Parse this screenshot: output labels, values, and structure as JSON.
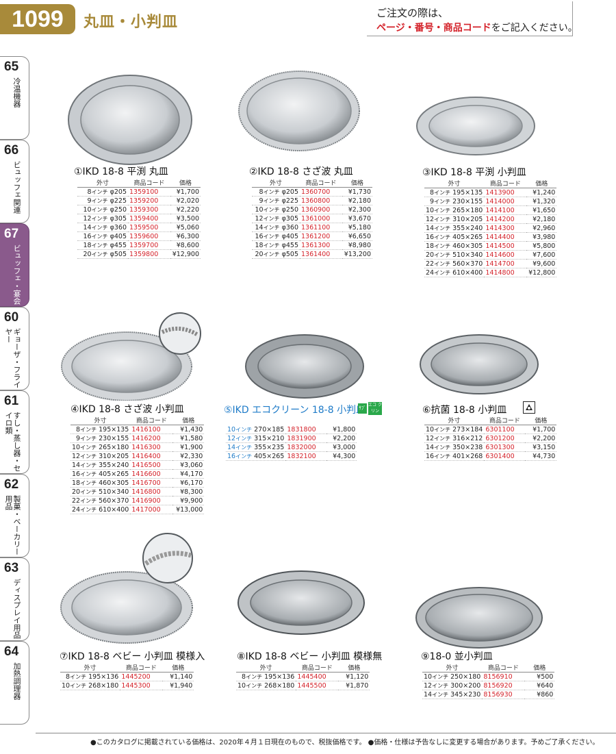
{
  "header": {
    "page_number": "1099",
    "title": "丸皿・小判皿",
    "notice_line1": "ご注文の際は、",
    "notice_line2_red": "ページ・番号・商品コード",
    "notice_line2_rest": "をご記入ください。"
  },
  "tabs": [
    {
      "num": "65",
      "label": "冷温機器"
    },
    {
      "num": "66",
      "label": "ビュッフェ関連"
    },
    {
      "num": "67",
      "label": "ビュッフェ・宴会"
    },
    {
      "num": "60",
      "label": "ギョーザ・フライヤー"
    },
    {
      "num": "61",
      "label": "すし・蒸し器・セイロ類"
    },
    {
      "num": "62",
      "label": "製菓・ベーカリー用品"
    },
    {
      "num": "63",
      "label": "ディスプレイ用品"
    },
    {
      "num": "64",
      "label": "加熱調理器"
    }
  ],
  "columns": {
    "size": "外寸",
    "code": "商品コード",
    "price": "価格"
  },
  "unit": "インチ",
  "colors": {
    "gold": "#a88a3a",
    "red": "#d4222a",
    "purple": "#8a5a8c",
    "blue": "#1e7bc8",
    "green": "#2aa84a"
  },
  "products": [
    {
      "title": "①IKD 18-8 平渕 丸皿",
      "rows": [
        {
          "inch": "8",
          "size": "φ205",
          "code": "1359100",
          "price": "¥1,700"
        },
        {
          "inch": "9",
          "size": "φ225",
          "code": "1359200",
          "price": "¥2,020"
        },
        {
          "inch": "10",
          "size": "φ250",
          "code": "1359300",
          "price": "¥2,220"
        },
        {
          "inch": "12",
          "size": "φ305",
          "code": "1359400",
          "price": "¥3,500"
        },
        {
          "inch": "14",
          "size": "φ360",
          "code": "1359500",
          "price": "¥5,060"
        },
        {
          "inch": "16",
          "size": "φ405",
          "code": "1359600",
          "price": "¥6,300"
        },
        {
          "inch": "18",
          "size": "φ455",
          "code": "1359700",
          "price": "¥8,600"
        },
        {
          "inch": "20",
          "size": "φ505",
          "code": "1359800",
          "price": "¥12,900"
        }
      ]
    },
    {
      "title": "②IKD 18-8 さざ波 丸皿",
      "rows": [
        {
          "inch": "8",
          "size": "φ205",
          "code": "1360700",
          "price": "¥1,730"
        },
        {
          "inch": "9",
          "size": "φ225",
          "code": "1360800",
          "price": "¥2,180"
        },
        {
          "inch": "10",
          "size": "φ250",
          "code": "1360900",
          "price": "¥2,300"
        },
        {
          "inch": "12",
          "size": "φ305",
          "code": "1361000",
          "price": "¥3,670"
        },
        {
          "inch": "14",
          "size": "φ360",
          "code": "1361100",
          "price": "¥5,180"
        },
        {
          "inch": "16",
          "size": "φ405",
          "code": "1361200",
          "price": "¥6,650"
        },
        {
          "inch": "18",
          "size": "φ455",
          "code": "1361300",
          "price": "¥8,980"
        },
        {
          "inch": "20",
          "size": "φ505",
          "code": "1361400",
          "price": "¥13,200"
        }
      ]
    },
    {
      "title": "③IKD 18-8 平渕 小判皿",
      "rows": [
        {
          "inch": "8",
          "size": "195×135",
          "code": "1413900",
          "price": "¥1,240"
        },
        {
          "inch": "9",
          "size": "230×155",
          "code": "1414000",
          "price": "¥1,320"
        },
        {
          "inch": "10",
          "size": "265×180",
          "code": "1414100",
          "price": "¥1,650"
        },
        {
          "inch": "12",
          "size": "310×205",
          "code": "1414200",
          "price": "¥2,180"
        },
        {
          "inch": "14",
          "size": "355×240",
          "code": "1414300",
          "price": "¥2,960"
        },
        {
          "inch": "16",
          "size": "405×265",
          "code": "1414400",
          "price": "¥3,980"
        },
        {
          "inch": "18",
          "size": "460×305",
          "code": "1414500",
          "price": "¥5,800"
        },
        {
          "inch": "20",
          "size": "510×340",
          "code": "1414600",
          "price": "¥7,600"
        },
        {
          "inch": "22",
          "size": "560×370",
          "code": "1414700",
          "price": "¥9,600"
        },
        {
          "inch": "24",
          "size": "610×400",
          "code": "1414800",
          "price": "¥12,800"
        }
      ]
    },
    {
      "title": "④IKD 18-8 さざ波 小判皿",
      "rows": [
        {
          "inch": "8",
          "size": "195×135",
          "code": "1416100",
          "price": "¥1,430"
        },
        {
          "inch": "9",
          "size": "230×155",
          "code": "1416200",
          "price": "¥1,580"
        },
        {
          "inch": "10",
          "size": "265×180",
          "code": "1416300",
          "price": "¥1,900"
        },
        {
          "inch": "12",
          "size": "310×205",
          "code": "1416400",
          "price": "¥2,330"
        },
        {
          "inch": "14",
          "size": "355×240",
          "code": "1416500",
          "price": "¥3,060"
        },
        {
          "inch": "16",
          "size": "405×265",
          "code": "1416600",
          "price": "¥4,170"
        },
        {
          "inch": "18",
          "size": "460×305",
          "code": "1416700",
          "price": "¥6,170"
        },
        {
          "inch": "20",
          "size": "510×340",
          "code": "1416800",
          "price": "¥8,300"
        },
        {
          "inch": "22",
          "size": "560×370",
          "code": "1416900",
          "price": "¥9,900"
        },
        {
          "inch": "24",
          "size": "610×400",
          "code": "1417000",
          "price": "¥13,000"
        }
      ]
    },
    {
      "title": "⑤IKD エコクリーン 18-8 小判皿",
      "badge1": "ｻﾌﾞ",
      "badge2": "エコ クリン",
      "rows": [
        {
          "inch": "10",
          "size": "270×185",
          "code": "1831800",
          "price": "¥1,800"
        },
        {
          "inch": "12",
          "size": "315×210",
          "code": "1831900",
          "price": "¥2,200"
        },
        {
          "inch": "14",
          "size": "355×235",
          "code": "1832000",
          "price": "¥3,000"
        },
        {
          "inch": "16",
          "size": "405×265",
          "code": "1832100",
          "price": "¥4,300"
        }
      ]
    },
    {
      "title": "⑥抗菌 18-8 小判皿",
      "rows": [
        {
          "inch": "10",
          "size": "273×184",
          "code": "6301100",
          "price": "¥1,700"
        },
        {
          "inch": "12",
          "size": "316×212",
          "code": "6301200",
          "price": "¥2,200"
        },
        {
          "inch": "14",
          "size": "350×238",
          "code": "6301300",
          "price": "¥3,150"
        },
        {
          "inch": "16",
          "size": "401×268",
          "code": "6301400",
          "price": "¥4,730"
        }
      ]
    },
    {
      "title": "⑦IKD 18-8 ベビー 小判皿 模様入",
      "rows": [
        {
          "inch": "8",
          "size": "195×136",
          "code": "1445200",
          "price": "¥1,140"
        },
        {
          "inch": "10",
          "size": "268×180",
          "code": "1445300",
          "price": "¥1,940"
        }
      ]
    },
    {
      "title": "⑧IKD 18-8 ベビー 小判皿 模様無",
      "rows": [
        {
          "inch": "8",
          "size": "195×136",
          "code": "1445400",
          "price": "¥1,120"
        },
        {
          "inch": "10",
          "size": "268×180",
          "code": "1445500",
          "price": "¥1,870"
        }
      ]
    },
    {
      "title": "⑨18-0 並小判皿",
      "rows": [
        {
          "inch": "10",
          "size": "250×180",
          "code": "8156910",
          "price": "¥500"
        },
        {
          "inch": "12",
          "size": "300×200",
          "code": "8156920",
          "price": "¥640"
        },
        {
          "inch": "14",
          "size": "345×230",
          "code": "8156930",
          "price": "¥860"
        }
      ]
    }
  ],
  "footer": "●このカタログに掲載されている価格は、2020年４月１日現在のもので、税抜価格です。 ●価格・仕様は予告なしに変更する場合があります。予めご了承ください。"
}
